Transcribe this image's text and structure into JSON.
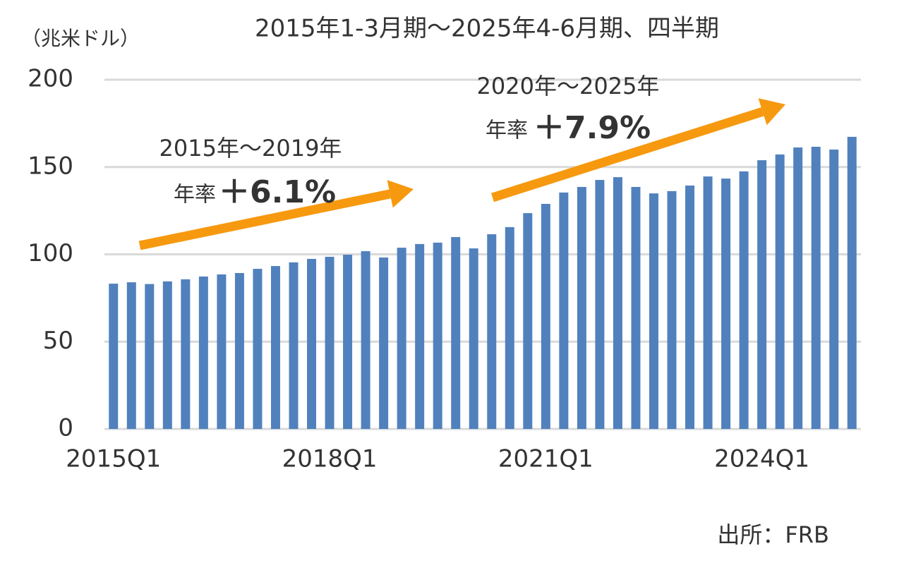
{
  "chart_data": {
    "type": "bar",
    "title": "2015年1-3月期～2025年4-6月期、四半期",
    "y_label": "（兆米ドル）",
    "source": "出所：FRB",
    "annotations": [
      {
        "period": "2015年～2019年",
        "label": "年率",
        "rate": "＋6.1%"
      },
      {
        "period": "2020年～2025年",
        "label": "年率",
        "rate": "＋7.9%"
      }
    ],
    "annotation_color": "#f6990f",
    "categories": [
      "2015Q1",
      null,
      null,
      null,
      null,
      null,
      null,
      null,
      null,
      null,
      null,
      null,
      "2018Q1",
      null,
      null,
      null,
      null,
      null,
      null,
      null,
      null,
      null,
      null,
      null,
      "2021Q1",
      null,
      null,
      null,
      null,
      null,
      null,
      null,
      null,
      null,
      null,
      null,
      "2024Q1",
      null,
      null,
      null,
      null,
      null
    ],
    "values": [
      83.2,
      84.0,
      83.0,
      84.5,
      85.7,
      87.3,
      88.5,
      89.3,
      91.7,
      93.3,
      95.4,
      97.4,
      98.6,
      99.8,
      101.8,
      98.2,
      103.8,
      105.9,
      106.7,
      109.9,
      103.4,
      111.5,
      115.6,
      123.6,
      128.9,
      135.4,
      138.6,
      142.6,
      144.2,
      138.6,
      134.9,
      136.2,
      139.4,
      144.6,
      143.4,
      147.5,
      153.9,
      157.2,
      161.2,
      161.6,
      160.0,
      167.3
    ],
    "color": "#5181bd",
    "ylim": [
      0,
      200
    ],
    "yticks": [
      0,
      50,
      100,
      150,
      200
    ],
    "grid": true
  }
}
